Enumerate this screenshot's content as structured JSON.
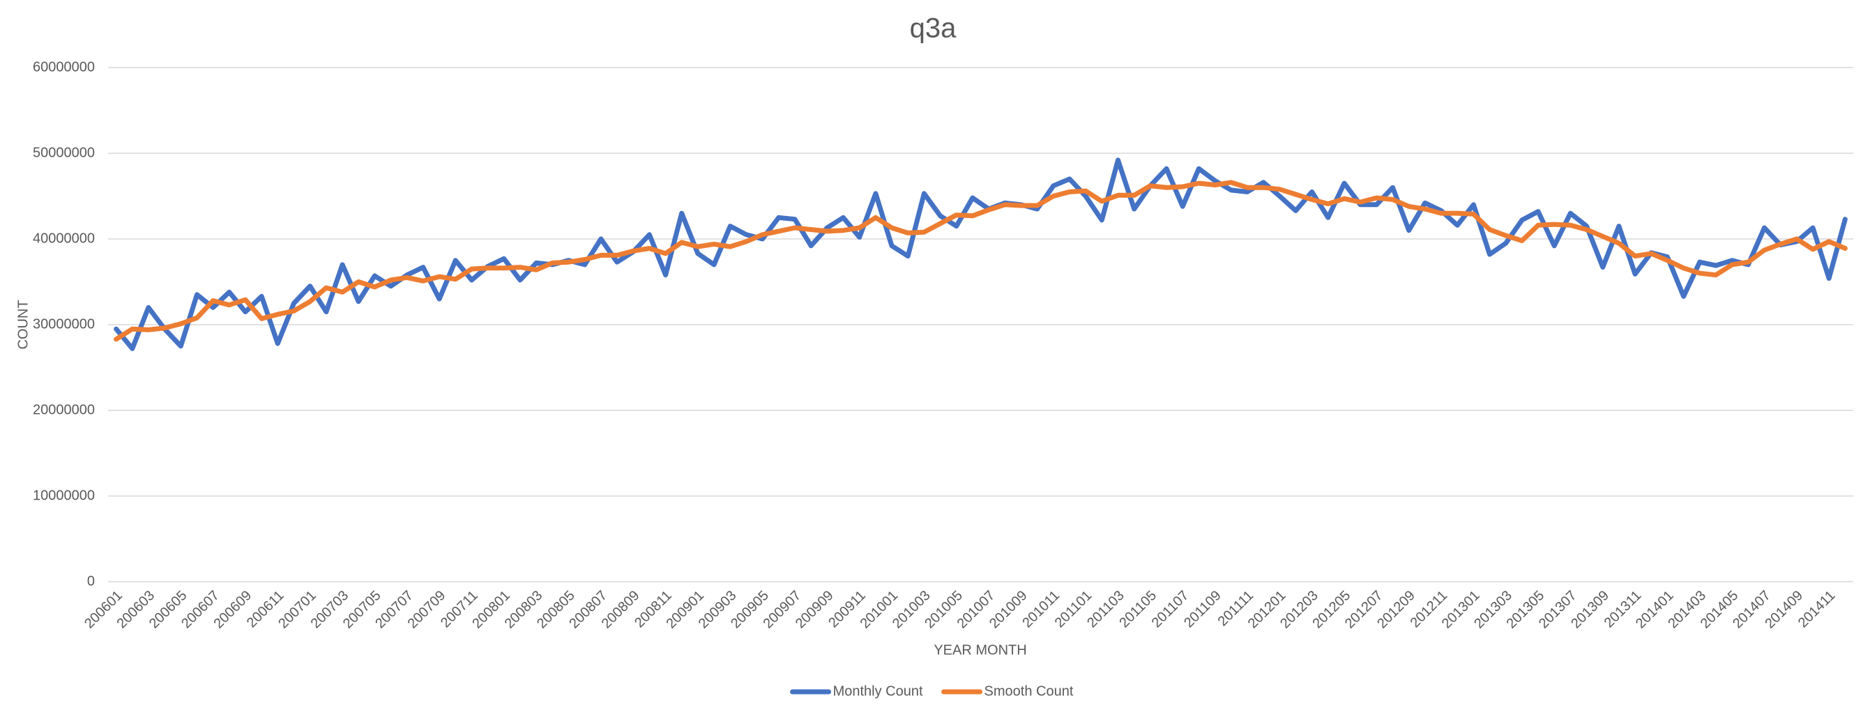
{
  "chart_data": {
    "type": "line",
    "title": "q3a",
    "x_label": "YEAR MONTH",
    "y_label": "COUNT",
    "categories": [
      "200601",
      null,
      "200603",
      null,
      "200605",
      null,
      "200607",
      null,
      "200609",
      null,
      "200611",
      null,
      "200701",
      null,
      "200703",
      null,
      "200705",
      null,
      "200707",
      null,
      "200709",
      null,
      "200711",
      null,
      "200801",
      null,
      "200803",
      null,
      "200805",
      null,
      "200807",
      null,
      "200809",
      null,
      "200811",
      null,
      "200901",
      null,
      "200903",
      null,
      "200905",
      null,
      "200907",
      null,
      "200909",
      null,
      "200911",
      null,
      "201001",
      null,
      "201003",
      null,
      "201005",
      null,
      "201007",
      null,
      "201009",
      null,
      "201011",
      null,
      "201101",
      null,
      "201103",
      null,
      "201105",
      null,
      "201107",
      null,
      "201109",
      null,
      "201111",
      null,
      "201201",
      null,
      "201203",
      null,
      "201205",
      null,
      "201207",
      null,
      "201209",
      null,
      "201211",
      null,
      "201301",
      null,
      "201303",
      null,
      "201305",
      null,
      "201307",
      null,
      "201309",
      null,
      "201311",
      null,
      "201401",
      null,
      "201403",
      null,
      "201405",
      null,
      "201407",
      null,
      "201409",
      null,
      "201411",
      null
    ],
    "series": [
      {
        "name": "Monthly Count",
        "color": "#4472c4",
        "values": [
          29500000,
          27200000,
          32000000,
          29500000,
          27500000,
          33500000,
          32000000,
          33800000,
          31500000,
          33300000,
          27800000,
          32500000,
          34500000,
          31500000,
          37000000,
          32700000,
          35700000,
          34500000,
          35800000,
          36700000,
          33000000,
          37500000,
          35200000,
          36800000,
          37700000,
          35200000,
          37200000,
          37000000,
          37500000,
          37000000,
          40000000,
          37300000,
          38500000,
          40500000,
          35800000,
          43000000,
          38300000,
          37000000,
          41500000,
          40500000,
          40000000,
          42500000,
          42300000,
          39200000,
          41300000,
          42500000,
          40200000,
          45300000,
          39200000,
          38000000,
          45300000,
          42700000,
          41500000,
          44800000,
          43500000,
          44200000,
          44000000,
          43500000,
          46200000,
          47000000,
          45000000,
          42200000,
          49200000,
          43500000,
          46200000,
          48200000,
          43800000,
          48200000,
          46800000,
          45700000,
          45500000,
          46600000,
          45000000,
          43300000,
          45500000,
          42500000,
          46500000,
          44000000,
          44000000,
          46000000,
          41000000,
          44200000,
          43300000,
          41600000,
          44000000,
          38200000,
          39500000,
          42200000,
          43200000,
          39200000,
          43000000,
          41500000,
          36700000,
          41500000,
          35900000,
          38400000,
          37900000,
          33300000,
          37300000,
          36900000,
          37500000,
          37000000,
          41300000,
          39300000,
          39700000,
          41300000,
          35400000,
          42300000
        ]
      },
      {
        "name": "Smooth Count",
        "color": "#ed7d31",
        "values": [
          28300000,
          29500000,
          29400000,
          29600000,
          30100000,
          30800000,
          32800000,
          32300000,
          32900000,
          30700000,
          31200000,
          31600000,
          32700000,
          34300000,
          33800000,
          35000000,
          34400000,
          35200000,
          35500000,
          35100000,
          35600000,
          35300000,
          36500000,
          36600000,
          36600000,
          36700000,
          36400000,
          37200000,
          37300000,
          37600000,
          38100000,
          38100000,
          38600000,
          38900000,
          38300000,
          39600000,
          39100000,
          39400000,
          39100000,
          39700000,
          40500000,
          40900000,
          41300000,
          41100000,
          40900000,
          41000000,
          41300000,
          42500000,
          41300000,
          40700000,
          40800000,
          41800000,
          42800000,
          42700000,
          43400000,
          44000000,
          43900000,
          43900000,
          45000000,
          45500000,
          45600000,
          44400000,
          45100000,
          45100000,
          46200000,
          46000000,
          46100000,
          46500000,
          46300000,
          46600000,
          46000000,
          46000000,
          45800000,
          45200000,
          44600000,
          44100000,
          44700000,
          44300000,
          44800000,
          44600000,
          43800000,
          43500000,
          43000000,
          43000000,
          42900000,
          41100000,
          40400000,
          39800000,
          41600000,
          41700000,
          41600000,
          41100000,
          40300000,
          39500000,
          38000000,
          38300000,
          37500000,
          36600000,
          36000000,
          35800000,
          37000000,
          37300000,
          38700000,
          39400000,
          40000000,
          38800000,
          39700000,
          38900000
        ]
      }
    ],
    "ylim": [
      0,
      60000000
    ],
    "yticks": [
      0,
      10000000,
      20000000,
      30000000,
      40000000,
      50000000,
      60000000
    ],
    "grid": true,
    "legend": "bottom"
  }
}
